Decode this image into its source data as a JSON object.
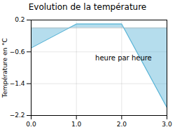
{
  "chart_data": {
    "type": "area",
    "title": "Evolution de la température",
    "ylabel": "Température en °C",
    "annotation": "heure par heure",
    "x": [
      0,
      1,
      2,
      3
    ],
    "values": [
      -0.5,
      0.1,
      0.1,
      -2.0
    ],
    "color": "#5ab4d6",
    "xlim": [
      0,
      3
    ],
    "xticks": [
      0,
      1,
      2,
      3
    ],
    "ylim": [
      -2.2,
      0.2
    ],
    "yticks": [
      0.2,
      -0.6,
      -1.4,
      -2.2
    ],
    "grid": true
  }
}
